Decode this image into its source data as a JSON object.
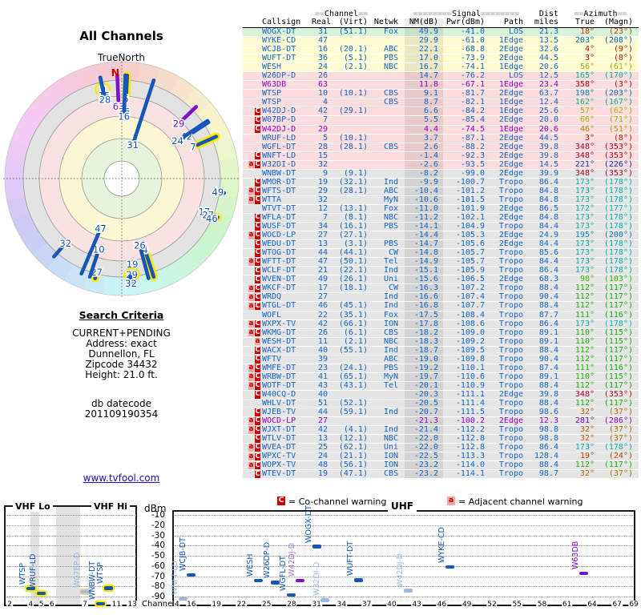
{
  "polar": {
    "title": "All Channels",
    "north_label": "TrueNorth",
    "n_marker": "N",
    "colors": {
      "rod_blue": "#1557b8",
      "rod_purple": "#7d10c8",
      "outline_yellow": "#ffe800",
      "ring_gray": "#e3e3e3",
      "ring_pink": "#fbe2e2",
      "ring_yellow": "#fcf8d4",
      "ring_green": "#e6f4da"
    },
    "markers": [
      {
        "az": 348,
        "ch": "9",
        "nm": -8.2,
        "label_oval": true
      },
      {
        "az": 348,
        "ch": "15",
        "nm": -1.4
      },
      {
        "az": 348,
        "ch": "28",
        "nm": 2.6
      },
      {
        "az": 357.5,
        "ch": "63",
        "nm": 11.8,
        "color": "purple"
      },
      {
        "az": 3,
        "ch": "5",
        "nm": 3.7,
        "rod_outline": true
      },
      {
        "az": 2,
        "ch": "36",
        "nm": 17.0
      },
      {
        "az": 2,
        "ch": "16",
        "nm": 22.1
      },
      {
        "az": 18,
        "ch": "31",
        "nm": 49.9
      },
      {
        "az": 46,
        "ch": "29",
        "nm": 4.4,
        "color": "purple"
      },
      {
        "az": 57,
        "ch": "42",
        "nm": 6.6
      },
      {
        "az": 56,
        "ch": "24",
        "nm": 16.7
      },
      {
        "az": 66,
        "ch": "7",
        "nm": 5.5,
        "rod_outline": true
      },
      {
        "az": 98,
        "ch": "49",
        "nm": -15.6
      },
      {
        "az": 112,
        "ch": "17",
        "nm": -16.3,
        "rod_outline": true,
        "label_dr": -10
      },
      {
        "az": 113,
        "ch": "27",
        "nm": -16.6,
        "label_dr": -4
      },
      {
        "az": 114,
        "ch": "46",
        "nm": -16.8,
        "label_dr": 2
      },
      {
        "az": 162,
        "ch": "4",
        "nm": 8.7,
        "rod_outline": true
      },
      {
        "az": 165,
        "ch": "26",
        "nm": 14.7
      },
      {
        "az": 173,
        "ch": "19",
        "nm": -9.9,
        "label_dr": -8
      },
      {
        "az": 174,
        "ch": "29",
        "nm": -10.4,
        "label_dr": 4,
        "label_oval": true
      },
      {
        "az": 175,
        "ch": "32",
        "nm": -10.6,
        "label_dr": 15
      },
      {
        "az": 195,
        "ch": "27",
        "nm": -14.4,
        "rod_outline": true
      },
      {
        "az": 198,
        "ch": "10",
        "nm": 9.1
      },
      {
        "az": 203,
        "ch": "47",
        "nm": 29.9
      },
      {
        "az": 221,
        "ch": "32",
        "nm": -2.6
      }
    ]
  },
  "search_criteria": {
    "heading": "Search Criteria",
    "lines": [
      "CURRENT+PENDING",
      "Address: exact",
      "Dunnellon, FL",
      "Zipcode 34432",
      "Height: 21.0 ft."
    ],
    "datecode_lines": [
      "db datecode",
      "201109190354"
    ],
    "link": "www.tvfool.com"
  },
  "table": {
    "header": {
      "channel": {
        "pre": "==",
        "word": "Channel",
        "post": "=="
      },
      "signal": {
        "pre": "========",
        "word": "Signal",
        "post": "========"
      },
      "dist": "Dist",
      "azimuth": {
        "pre": "==",
        "word": "Azimuth",
        "post": "=="
      },
      "cols": {
        "callsign": "Callsign",
        "real": "Real",
        "virt": "(Virt)",
        "netwk": "Netwk",
        "nm": "NM(dB)",
        "pwr": "Pwr(dBm)",
        "path": "Path",
        "miles": "miles",
        "true": "True",
        "magn": "(Magn)"
      }
    },
    "row_colors": {
      "green": "#d9f3d9",
      "yellow": "#fefcd1",
      "pink": "#fcdcdc",
      "gray": "#e5e5e5"
    },
    "text_colors": {
      "blue": "#1565c8",
      "purple": "#9900cc"
    },
    "rows": [
      [
        "",
        "WOGX-DT",
        "31",
        "(51.1)",
        "Fox",
        "49.9",
        "-41.0",
        "LOS",
        "21.3",
        "18°",
        "(23°)",
        "green",
        "blue"
      ],
      [
        "",
        "WYKE-CD",
        "47",
        "",
        "",
        "29.9",
        "-61.0",
        "1Edge",
        "13.5",
        "203°",
        "(208°)",
        "yellow",
        "blue"
      ],
      [
        "",
        "WCJB-DT",
        "16",
        "(20.1)",
        "ABC",
        "22.1",
        "-68.8",
        "2Edge",
        "32.6",
        "4°",
        "(9°)",
        "yellow",
        "blue"
      ],
      [
        "",
        "WUFT-DT",
        "36",
        "(5.1)",
        "PBS",
        "17.0",
        "-73.9",
        "2Edge",
        "44.5",
        "3°",
        "(8°)",
        "yellow",
        "blue"
      ],
      [
        "",
        "WESH",
        "24",
        "(2.1)",
        "NBC",
        "16.7",
        "-74.1",
        "1Edge",
        "20.6",
        "56°",
        "(61°)",
        "yellow",
        "blue"
      ],
      [
        "",
        "W26DP-D",
        "26",
        "",
        "",
        "14.7",
        "-76.2",
        "LOS",
        "12.5",
        "165°",
        "(170°)",
        "pink",
        "blue"
      ],
      [
        "",
        "W63DB",
        "63",
        "",
        "",
        "11.8",
        "-67.1",
        "1Edge",
        "23.4",
        "358°",
        "(3°)",
        "pink",
        "purple"
      ],
      [
        "",
        "WTSP",
        "10",
        "(10.1)",
        "CBS",
        "9.1",
        "-81.7",
        "2Edge",
        "63.7",
        "198°",
        "(203°)",
        "pink",
        "blue"
      ],
      [
        "",
        "WTSP",
        "4",
        "",
        "CBS",
        "8.7",
        "-82.1",
        "1Edge",
        "12.4",
        "162°",
        "(167°)",
        "pink",
        "blue"
      ],
      [
        "C",
        "W42DJ-D",
        "42",
        "(29.1)",
        "",
        "6.6",
        "-84.2",
        "1Edge",
        "25.6",
        "57°",
        "(62°)",
        "pink",
        "blue"
      ],
      [
        "C",
        "W07BP-D",
        "7",
        "",
        "",
        "5.5",
        "-85.4",
        "2Edge",
        "20.0",
        "66°",
        "(71°)",
        "pink",
        "blue"
      ],
      [
        "C",
        "W42DJ-D",
        "29",
        "",
        "",
        "4.4",
        "-74.5",
        "1Edge",
        "20.6",
        "46°",
        "(51°)",
        "pink",
        "purple"
      ],
      [
        "",
        "WRUF-LD",
        "5",
        "(10.1)",
        "",
        "3.7",
        "-87.1",
        "2Edge",
        "44.5",
        "3°",
        "(8°)",
        "pink",
        "blue"
      ],
      [
        "",
        "WGFL-DT",
        "28",
        "(28.1)",
        "CBS",
        "2.6",
        "-88.2",
        "2Edge",
        "39.8",
        "348°",
        "(353°)",
        "pink",
        "blue"
      ],
      [
        "C",
        "WNFT-LD",
        "15",
        "",
        "",
        "-1.4",
        "-92.3",
        "2Edge",
        "39.8",
        "348°",
        "(353°)",
        "pink",
        "blue"
      ],
      [
        "aC",
        "W32DI-D",
        "32",
        "",
        "",
        "-2.6",
        "-93.5",
        "2Edge",
        "14.5",
        "221°",
        "(226°)",
        "pink",
        "blue"
      ],
      [
        "",
        "WNBW-DT",
        "9",
        "(9.1)",
        "",
        "-8.2",
        "-99.0",
        "2Edge",
        "39.9",
        "348°",
        "(353°)",
        "gray",
        "blue"
      ],
      [
        "C",
        "WMOR-DT",
        "19",
        "(32.1)",
        "Ind",
        "-9.9",
        "-100.7",
        "Tropo",
        "86.4",
        "173°",
        "(178°)",
        "gray",
        "blue"
      ],
      [
        "aC",
        "WFTS-DT",
        "29",
        "(28.1)",
        "ABC",
        "-10.4",
        "-101.2",
        "Tropo",
        "84.8",
        "173°",
        "(178°)",
        "gray",
        "blue"
      ],
      [
        "aC",
        "WTTA",
        "32",
        "",
        "MyN",
        "-10.6",
        "-101.5",
        "Tropo",
        "84.8",
        "173°",
        "(178°)",
        "gray",
        "blue"
      ],
      [
        "",
        "WTVT-DT",
        "12",
        "(13.1)",
        "Fox",
        "-11.0",
        "-101.9",
        "2Edge",
        "86.5",
        "172°",
        "(177°)",
        "gray",
        "blue"
      ],
      [
        "C",
        "WFLA-DT",
        "7",
        "(8.1)",
        "NBC",
        "-11.2",
        "-102.1",
        "2Edge",
        "84.8",
        "173°",
        "(178°)",
        "gray",
        "blue"
      ],
      [
        "C",
        "WUSF-DT",
        "34",
        "(16.1)",
        "PBS",
        "-14.1",
        "-104.9",
        "Tropo",
        "84.4",
        "173°",
        "(178°)",
        "gray",
        "blue"
      ],
      [
        "aC",
        "WOCD-LP",
        "27",
        "(27.1)",
        "",
        "-14.4",
        "-105.3",
        "2Edge",
        "24.9",
        "195°",
        "(200°)",
        "gray",
        "blue"
      ],
      [
        "C",
        "WEDU-DT",
        "13",
        "(3.1)",
        "PBS",
        "-14.7",
        "-105.6",
        "2Edge",
        "84.4",
        "173°",
        "(178°)",
        "gray",
        "blue"
      ],
      [
        "C",
        "WTOG-DT",
        "44",
        "(44.1)",
        "CW",
        "-14.8",
        "-105.7",
        "Tropo",
        "85.6",
        "173°",
        "(178°)",
        "gray",
        "blue"
      ],
      [
        "aC",
        "WFTT-DT",
        "47",
        "(50.1)",
        "Tel",
        "-14.9",
        "-105.7",
        "Tropo",
        "84.4",
        "173°",
        "(178°)",
        "gray",
        "blue"
      ],
      [
        "C",
        "WCLF-DT",
        "21",
        "(22.1)",
        "Ind",
        "-15.1",
        "-105.9",
        "Tropo",
        "86.4",
        "173°",
        "(178°)",
        "gray",
        "blue"
      ],
      [
        "C",
        "WVEN-DT",
        "49",
        "(26.1)",
        "Uni",
        "-15.6",
        "-106.5",
        "2Edge",
        "68.3",
        "98°",
        "(103°)",
        "gray",
        "blue"
      ],
      [
        "aC",
        "WKCF-DT",
        "17",
        "(18.1)",
        "CW",
        "-16.3",
        "-107.2",
        "Tropo",
        "88.4",
        "112°",
        "(117°)",
        "gray",
        "blue"
      ],
      [
        "aC",
        "WRDQ",
        "27",
        "",
        "Ind",
        "-16.6",
        "-107.4",
        "Tropo",
        "90.4",
        "112°",
        "(117°)",
        "gray",
        "blue"
      ],
      [
        "aC",
        "WTGL-DT",
        "46",
        "(45.1)",
        "Ind",
        "-16.8",
        "-107.7",
        "Tropo",
        "88.4",
        "112°",
        "(117°)",
        "gray",
        "blue"
      ],
      [
        "",
        "WOFL",
        "22",
        "(35.1)",
        "Fox",
        "-17.5",
        "-108.4",
        "Tropo",
        "87.7",
        "111°",
        "(116°)",
        "gray",
        "blue"
      ],
      [
        "aC",
        "WXPX-TV",
        "42",
        "(66.1)",
        "ION",
        "-17.8",
        "-108.6",
        "Tropo",
        "86.4",
        "173°",
        "(178°)",
        "gray",
        "blue"
      ],
      [
        "aC",
        "WKMG-DT",
        "26",
        "(6.1)",
        "CBS",
        "-18.2",
        "-109.0",
        "Tropo",
        "89.1",
        "110°",
        "(115°)",
        "gray",
        "blue"
      ],
      [
        "a",
        "WESH-DT",
        "11",
        "(2.1)",
        "NBC",
        "-18.3",
        "-109.2",
        "Tropo",
        "89.1",
        "110°",
        "(115°)",
        "gray",
        "blue"
      ],
      [
        "C",
        "WACX-DT",
        "40",
        "(55.1)",
        "Ind",
        "-18.7",
        "-109.5",
        "Tropo",
        "88.4",
        "112°",
        "(117°)",
        "gray",
        "blue"
      ],
      [
        "C",
        "WFTV",
        "39",
        "",
        "ABC",
        "-19.0",
        "-109.8",
        "Tropo",
        "90.4",
        "112°",
        "(117°)",
        "gray",
        "blue"
      ],
      [
        "aC",
        "WMFE-DT",
        "23",
        "(24.1)",
        "PBS",
        "-19.2",
        "-110.1",
        "Tropo",
        "87.4",
        "111°",
        "(116°)",
        "gray",
        "blue"
      ],
      [
        "aC",
        "WRBW-DT",
        "41",
        "(65.1)",
        "MyN",
        "-19.7",
        "-110.6",
        "Tropo",
        "89.1",
        "110°",
        "(115°)",
        "gray",
        "blue"
      ],
      [
        "aC",
        "WOTF-DT",
        "43",
        "(43.1)",
        "Tel",
        "-20.1",
        "-110.9",
        "Tropo",
        "88.4",
        "112°",
        "(117°)",
        "gray",
        "blue"
      ],
      [
        "C",
        "W40CQ-D",
        "40",
        "",
        "",
        "-20.3",
        "-111.1",
        "2Edge",
        "39.8",
        "348°",
        "(353°)",
        "gray",
        "blue"
      ],
      [
        "",
        "WHLV-DT",
        "51",
        "(52.1)",
        "",
        "-20.5",
        "-111.4",
        "Tropo",
        "88.4",
        "112°",
        "(117°)",
        "gray",
        "blue"
      ],
      [
        "C",
        "WJEB-TV",
        "44",
        "(59.1)",
        "Ind",
        "-20.7",
        "-111.5",
        "Tropo",
        "98.6",
        "32°",
        "(37°)",
        "gray",
        "blue"
      ],
      [
        "aC",
        "WOCD-LP",
        "27",
        "",
        "",
        "-21.3",
        "-100.2",
        "2Edge",
        "12.3",
        "281°",
        "(286°)",
        "gray",
        "purple"
      ],
      [
        "aC",
        "WJXT-DT",
        "42",
        "(4.1)",
        "Ind",
        "-21.4",
        "-112.2",
        "Tropo",
        "98.8",
        "32°",
        "(37°)",
        "gray",
        "blue"
      ],
      [
        "C",
        "WTLV-DT",
        "13",
        "(12.1)",
        "NBC",
        "-22.0",
        "-112.8",
        "Tropo",
        "98.8",
        "32°",
        "(37°)",
        "gray",
        "blue"
      ],
      [
        "aC",
        "WVEA-DT",
        "25",
        "(62.1)",
        "Uni",
        "-22.0",
        "-112.8",
        "Tropo",
        "86.4",
        "173°",
        "(178°)",
        "gray",
        "blue"
      ],
      [
        "aC",
        "WPXC-TV",
        "24",
        "(21.1)",
        "ION",
        "-22.5",
        "-113.3",
        "Tropo",
        "128.4",
        "19°",
        "(24°)",
        "gray",
        "blue"
      ],
      [
        "aC",
        "WOPX-TV",
        "48",
        "(56.1)",
        "ION",
        "-23.2",
        "-114.0",
        "Tropo",
        "88.4",
        "112°",
        "(117°)",
        "gray",
        "blue"
      ],
      [
        "C",
        "WTEV-DT",
        "19",
        "(47.1)",
        "CBS",
        "-23.2",
        "-114.1",
        "Tropo",
        "98.7",
        "32°",
        "(37°)",
        "gray",
        "blue"
      ]
    ]
  },
  "legend": {
    "co": {
      "symbol": "C",
      "label": "= Co-channel warning"
    },
    "adj": {
      "symbol": "a",
      "label": "= Adjacent channel warning"
    }
  },
  "bottom_charts": {
    "dbm_label": "dBm",
    "dbm_ticks": [
      -10,
      -20,
      -30,
      -40,
      -50,
      -60,
      -70,
      -80,
      -90
    ],
    "channel_label": "Channel",
    "colors": {
      "blue": "#1557b8",
      "muted": "#9db9e2",
      "purple": "#7d10c8",
      "violet_label": "#a878d8",
      "outline_yellow": "#ffe800",
      "outline_tan": "#edcf9c"
    },
    "vhf": {
      "lo_label": "VHF Lo",
      "hi_label": "VHF Hi",
      "ticks": [
        2,
        4,
        5,
        6,
        7,
        9,
        11,
        13
      ],
      "stations": [
        {
          "callsign": "WTSP",
          "ch": 4,
          "dbm": -82.1,
          "color": "blue",
          "outline": "yellow"
        },
        {
          "callsign": "WRUF-LD",
          "ch": 5,
          "dbm": -87.1,
          "color": "blue",
          "outline": "yellow"
        },
        {
          "callsign": "W07BP-D",
          "ch": 7,
          "dbm": -85.4,
          "color": "muted",
          "outline": "tan"
        },
        {
          "callsign": "WNBW-DT",
          "ch": 9,
          "dbm": -99.0,
          "color": "blue",
          "outline": "yellow"
        },
        {
          "callsign": "WTSP",
          "ch": 10,
          "dbm": -81.7,
          "color": "blue",
          "outline": "yellow"
        }
      ]
    },
    "uhf": {
      "label": "UHF",
      "ticks": [
        14,
        16,
        19,
        22,
        25,
        28,
        31,
        34,
        37,
        40,
        43,
        46,
        49,
        52,
        55,
        58,
        61,
        64,
        67,
        69
      ],
      "stations": [
        {
          "callsign": "WNFT-LD",
          "ch": 15,
          "dbm": -92.3,
          "color": "muted"
        },
        {
          "callsign": "WCJB-DT",
          "ch": 16,
          "dbm": -68.8,
          "color": "blue"
        },
        {
          "callsign": "WESH",
          "ch": 24,
          "dbm": -74.1,
          "color": "blue"
        },
        {
          "callsign": "W26DP-D",
          "ch": 26,
          "dbm": -76.2,
          "color": "blue"
        },
        {
          "callsign": "WGFL-DT",
          "ch": 28,
          "dbm": -88.2,
          "color": "blue"
        },
        {
          "callsign": "W42DJ-D",
          "ch": 29,
          "dbm": -74.5,
          "color": "violet"
        },
        {
          "callsign": "WOGX-DT",
          "ch": 31,
          "dbm": -41.0,
          "color": "blue"
        },
        {
          "callsign": "W32DI-D",
          "ch": 32,
          "dbm": -93.5,
          "color": "muted"
        },
        {
          "callsign": "WUFT-DT",
          "ch": 36,
          "dbm": -73.9,
          "color": "blue"
        },
        {
          "callsign": "W42DJ-D",
          "ch": 42,
          "dbm": -84.2,
          "color": "muted"
        },
        {
          "callsign": "WYKE-CD",
          "ch": 47,
          "dbm": -61.0,
          "color": "blue"
        },
        {
          "callsign": "W63DB",
          "ch": 63,
          "dbm": -67.1,
          "color": "purple"
        }
      ]
    }
  }
}
